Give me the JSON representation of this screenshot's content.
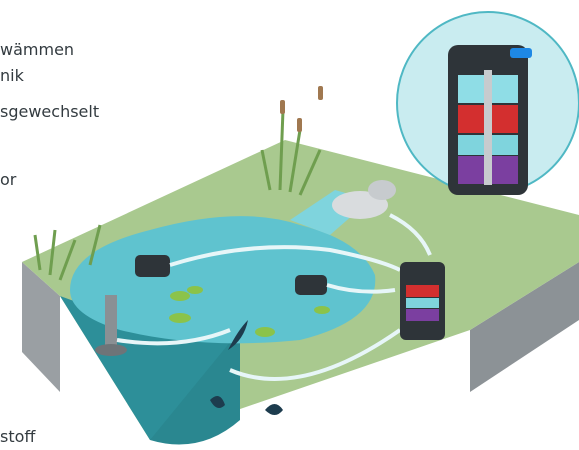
{
  "texts": [
    "wämmen",
    "nik",
    "sgewechselt",
    "or",
    "stoff"
  ]
}
